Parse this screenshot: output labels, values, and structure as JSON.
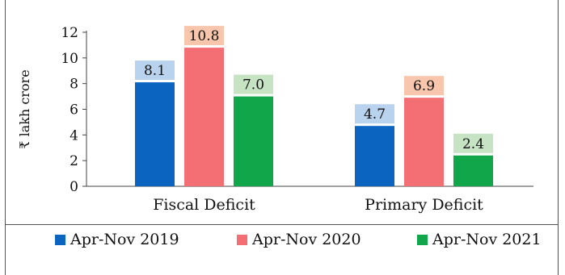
{
  "chart_data": {
    "type": "bar",
    "title": "",
    "xlabel": "",
    "ylabel": "₹ lakh crore",
    "ylim": [
      0,
      12
    ],
    "yticks": [
      "0",
      "2",
      "4",
      "6",
      "8",
      "10",
      "12"
    ],
    "grid": false,
    "legend_position": "bottom",
    "categories": [
      "Fiscal Deficit",
      "Primary Deficit"
    ],
    "series": [
      {
        "name": "Apr-Nov 2019",
        "color": "#0a64c0",
        "label_bg": "#b9d3ee",
        "values": [
          8.1,
          4.7
        ],
        "labels": [
          "8.1",
          "4.7"
        ]
      },
      {
        "name": "Apr-Nov 2020",
        "color": "#f46f74",
        "label_bg": "#f7c6ad",
        "values": [
          10.8,
          6.9
        ],
        "labels": [
          "10.8",
          "6.9"
        ]
      },
      {
        "name": "Apr-Nov 2021",
        "color": "#12a64a",
        "label_bg": "#c6e3c4",
        "values": [
          7.0,
          2.4
        ],
        "labels": [
          "7.0",
          "2.4"
        ]
      }
    ]
  }
}
